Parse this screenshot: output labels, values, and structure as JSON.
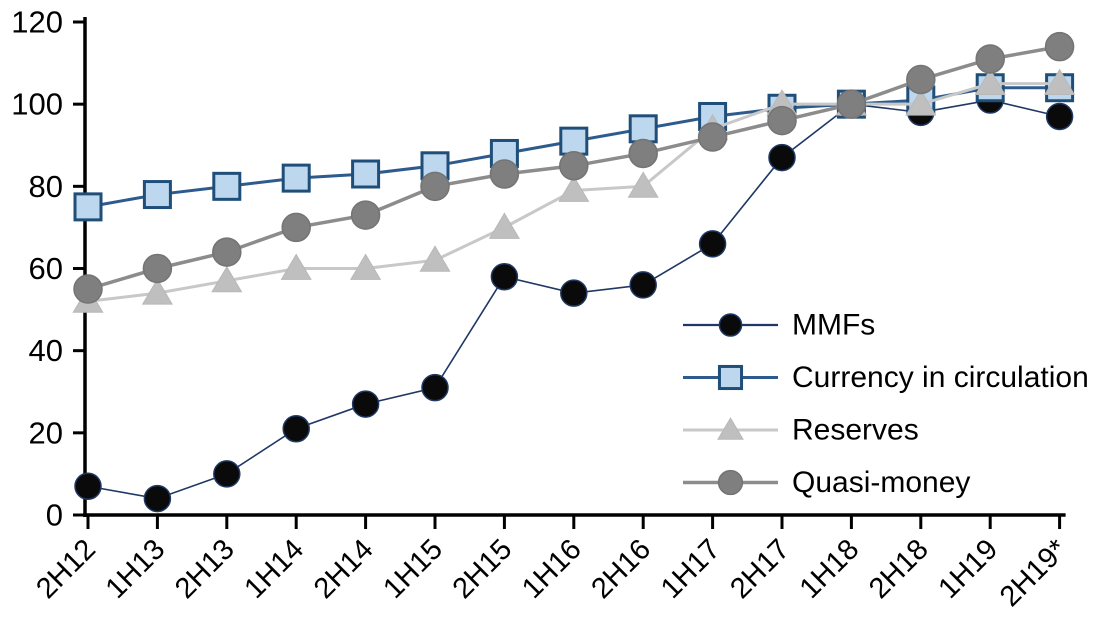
{
  "chart_data": {
    "type": "line",
    "title": "",
    "categories": [
      "2H12",
      "1H13",
      "2H13",
      "1H14",
      "2H14",
      "1H15",
      "2H15",
      "1H16",
      "2H16",
      "1H17",
      "2H17",
      "1H18",
      "2H18",
      "1H19",
      "2H19*"
    ],
    "series": [
      {
        "name": "MMFs",
        "values": [
          7,
          4,
          10,
          21,
          27,
          31,
          58,
          54,
          56,
          66,
          87,
          100,
          98,
          101,
          97
        ],
        "marker": "circle",
        "marker_fill": "#0a0a0a",
        "marker_stroke": "#1F3864",
        "line_color": "#1F3864",
        "line_width": 1.6,
        "marker_size": 13
      },
      {
        "name": "Currency in circulation",
        "values": [
          75,
          78,
          80,
          82,
          83,
          85,
          88,
          91,
          94,
          97,
          99,
          100,
          101,
          104,
          104
        ],
        "marker": "square",
        "marker_fill": "#BDD7EE",
        "marker_stroke": "#1F4E79",
        "line_color": "#2E5B8D",
        "line_width": 3,
        "marker_size": 13
      },
      {
        "name": "Reserves",
        "values": [
          52,
          54,
          57,
          60,
          60,
          62,
          70,
          79,
          80,
          94,
          100,
          100,
          100,
          105,
          105
        ],
        "marker": "triangle",
        "marker_fill": "#BFBFBF",
        "marker_stroke": "#B8B8B8",
        "line_color": "#C8C8C8",
        "line_width": 3,
        "marker_size": 14
      },
      {
        "name": "Quasi-money",
        "values": [
          55,
          60,
          64,
          70,
          73,
          80,
          83,
          85,
          88,
          92,
          96,
          100,
          106,
          111,
          114
        ],
        "marker": "circle",
        "marker_fill": "#7F7F7F",
        "marker_stroke": "#747474",
        "line_color": "#8C8C8C",
        "line_width": 3.5,
        "marker_size": 14
      }
    ],
    "ylim": [
      0,
      120
    ],
    "yticks": [
      0,
      20,
      40,
      60,
      80,
      100,
      120
    ],
    "xlabel": "",
    "ylabel": "",
    "grid": false,
    "legend_position": "inside-right",
    "axis_color": "#000000",
    "background_color": "#ffffff"
  }
}
